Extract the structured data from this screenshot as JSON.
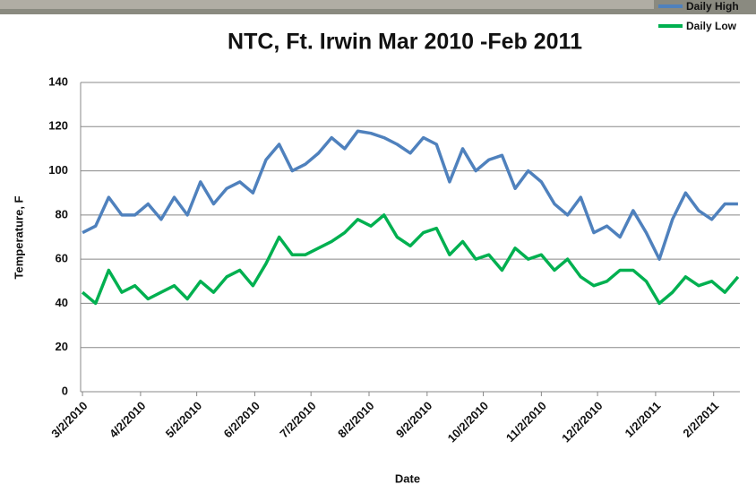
{
  "chart_data": {
    "type": "line",
    "title": "NTC, Ft. Irwin Mar 2010 -Feb 2011",
    "y_label": "Temperature, F",
    "x_label": "Date",
    "x": [
      "3/2/2010",
      "3/9/2010",
      "3/16/2010",
      "3/23/2010",
      "3/30/2010",
      "4/6/2010",
      "4/13/2010",
      "4/20/2010",
      "4/27/2010",
      "5/4/2010",
      "5/11/2010",
      "5/18/2010",
      "5/25/2010",
      "6/1/2010",
      "6/8/2010",
      "6/15/2010",
      "6/22/2010",
      "6/29/2010",
      "7/6/2010",
      "7/13/2010",
      "7/20/2010",
      "7/27/2010",
      "8/3/2010",
      "8/10/2010",
      "8/17/2010",
      "8/24/2010",
      "8/31/2010",
      "9/7/2010",
      "9/14/2010",
      "9/21/2010",
      "9/28/2010",
      "10/5/2010",
      "10/12/2010",
      "10/19/2010",
      "10/26/2010",
      "11/2/2010",
      "11/9/2010",
      "11/16/2010",
      "11/23/2010",
      "11/30/2010",
      "12/7/2010",
      "12/14/2010",
      "12/21/2010",
      "12/28/2010",
      "1/4/2011",
      "1/11/2011",
      "1/18/2011",
      "1/25/2011",
      "2/1/2011",
      "2/8/2011",
      "2/15/2011"
    ],
    "series": [
      {
        "name": "Daily High",
        "color": "#4f81bd",
        "values": [
          72,
          75,
          88,
          80,
          80,
          85,
          78,
          88,
          80,
          95,
          85,
          92,
          95,
          90,
          105,
          112,
          100,
          103,
          108,
          115,
          110,
          118,
          117,
          115,
          112,
          108,
          115,
          112,
          95,
          110,
          100,
          105,
          107,
          92,
          100,
          95,
          85,
          80,
          88,
          72,
          75,
          70,
          82,
          72,
          60,
          78,
          90,
          82,
          78,
          85,
          85
        ]
      },
      {
        "name": "Daily Low",
        "color": "#00b050",
        "values": [
          45,
          40,
          55,
          45,
          48,
          42,
          45,
          48,
          42,
          50,
          45,
          52,
          55,
          48,
          58,
          70,
          62,
          62,
          65,
          68,
          72,
          78,
          75,
          80,
          70,
          66,
          72,
          74,
          62,
          68,
          60,
          62,
          55,
          65,
          60,
          62,
          55,
          60,
          52,
          48,
          50,
          55,
          55,
          50,
          40,
          45,
          52,
          48,
          50,
          45,
          52
        ]
      }
    ],
    "xlim": [
      "3/1/2010",
      "2/16/2011"
    ],
    "xticks": [
      "3/2/2010",
      "4/2/2010",
      "5/2/2010",
      "6/2/2010",
      "7/2/2010",
      "8/2/2010",
      "9/2/2010",
      "10/2/2010",
      "11/2/2010",
      "12/2/2010",
      "1/2/2011",
      "2/2/2011"
    ],
    "ylim": [
      0,
      140
    ],
    "yticks": [
      0,
      20,
      40,
      60,
      80,
      100,
      120,
      140
    ],
    "grid": true
  }
}
